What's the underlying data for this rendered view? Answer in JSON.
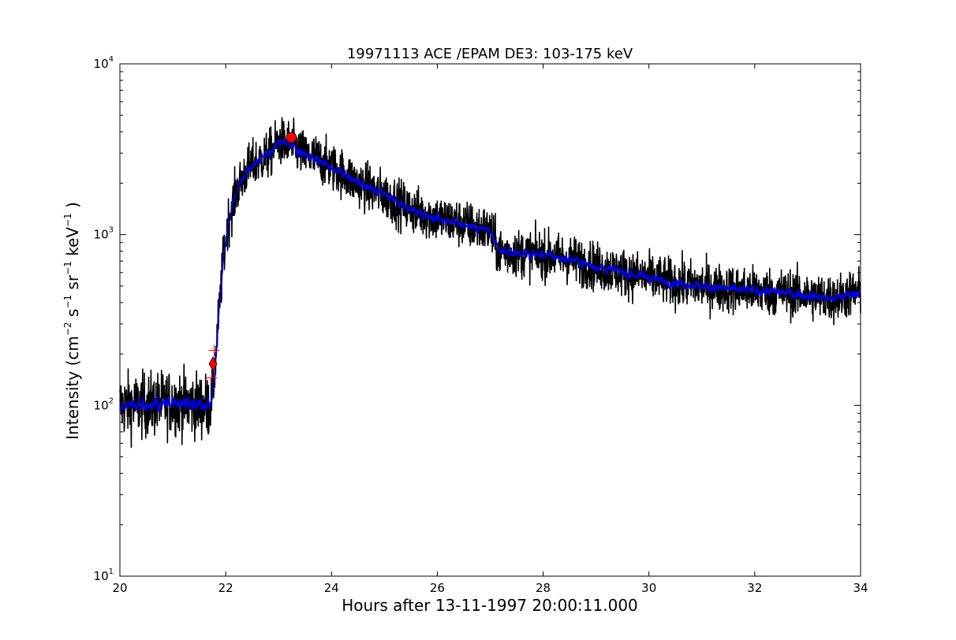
{
  "chart_data": {
    "type": "line",
    "title": "19971113 ACE /EPAM DE3: 103-175 keV",
    "xlabel": "Hours after 13-11-1997 20:00:11.000",
    "ylabel_parts": {
      "prefix": "Intensity (cm",
      "sup1": "−2",
      "mid1": " s",
      "sup2": "−1",
      "mid2": " sr",
      "sup3": "−1",
      "mid3": " keV",
      "sup4": "−1",
      "suffix": " )"
    },
    "xlim": [
      20,
      34
    ],
    "ylim": [
      10,
      10000
    ],
    "yscale": "log",
    "grid": false,
    "legend": "none",
    "x_ticks": [
      20,
      22,
      24,
      26,
      28,
      30,
      32,
      34
    ],
    "x_tick_labels": [
      "20",
      "22",
      "24",
      "26",
      "28",
      "30",
      "32",
      "34"
    ],
    "y_ticks": [
      {
        "value": 10,
        "base": "10",
        "exp": "1"
      },
      {
        "value": 100,
        "base": "10",
        "exp": "2"
      },
      {
        "value": 1000,
        "base": "10",
        "exp": "3"
      },
      {
        "value": 10000,
        "base": "10",
        "exp": "4"
      }
    ],
    "series": [
      {
        "kind": "raw",
        "color": "#000000",
        "noise": 0.16,
        "x": [
          20.0,
          20.5,
          21.0,
          21.5,
          21.7,
          21.78,
          21.85,
          21.95,
          22.05,
          22.2,
          22.4,
          22.6,
          22.8,
          23.0,
          23.2,
          23.5,
          23.7,
          23.9,
          24.2,
          24.5,
          25.0,
          25.5,
          26.0,
          26.5,
          27.0,
          27.15,
          27.5,
          28.0,
          28.5,
          29.0,
          29.5,
          30.0,
          30.5,
          31.0,
          31.5,
          32.0,
          32.5,
          33.0,
          33.5,
          33.8,
          34.0
        ],
        "y": [
          100,
          100,
          105,
          100,
          100,
          140,
          280,
          700,
          1200,
          1800,
          2400,
          2700,
          2900,
          3500,
          3400,
          2900,
          2800,
          2600,
          2300,
          2000,
          1700,
          1400,
          1250,
          1150,
          1050,
          800,
          780,
          760,
          720,
          650,
          600,
          560,
          520,
          500,
          480,
          470,
          460,
          440,
          420,
          450,
          460
        ]
      },
      {
        "kind": "smoothed",
        "color": "#0000ff",
        "noise": 0.06,
        "x": [
          20.0,
          20.5,
          21.0,
          21.5,
          21.7,
          21.78,
          21.85,
          21.95,
          22.05,
          22.2,
          22.4,
          22.6,
          22.8,
          23.0,
          23.2,
          23.5,
          23.7,
          23.9,
          24.2,
          24.5,
          25.0,
          25.5,
          26.0,
          26.5,
          27.0,
          27.15,
          27.5,
          28.0,
          28.5,
          29.0,
          29.5,
          30.0,
          30.5,
          31.0,
          31.5,
          32.0,
          32.5,
          33.0,
          33.5,
          33.8,
          34.0
        ],
        "y": [
          100,
          100,
          105,
          100,
          100,
          140,
          280,
          700,
          1200,
          1800,
          2400,
          2700,
          2900,
          3500,
          3400,
          2900,
          2800,
          2600,
          2300,
          2000,
          1700,
          1400,
          1250,
          1150,
          1050,
          800,
          780,
          760,
          720,
          650,
          600,
          560,
          520,
          500,
          480,
          470,
          460,
          440,
          420,
          450,
          460
        ]
      }
    ],
    "markers": [
      {
        "kind": "onset-diamond",
        "x": 21.76,
        "y": 175,
        "color": "#ff0000"
      },
      {
        "kind": "onset-error-plus",
        "x": 21.78,
        "y": 210,
        "color": "#ff0000"
      },
      {
        "kind": "onset-error-plus",
        "x": 21.74,
        "y": 145,
        "color": "#ff0000"
      },
      {
        "kind": "peak-circle",
        "x": 23.24,
        "y": 3700,
        "color": "#ff0000"
      }
    ]
  }
}
